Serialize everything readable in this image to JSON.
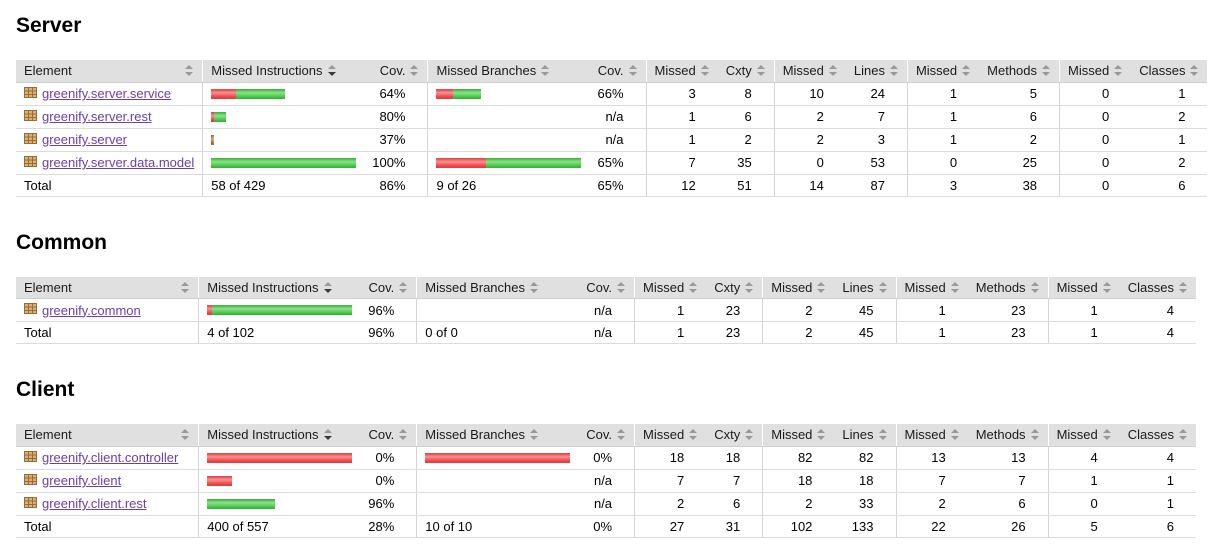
{
  "colors": {
    "header_bg": "#e0e0e0",
    "link": "#6b40a8",
    "bar_red": "#ee4343",
    "bar_green": "#44c544",
    "sort_inactive": "#999999",
    "sort_active": "#3a3a3a"
  },
  "columns": [
    {
      "label": "Element",
      "type": "element",
      "sorted": false
    },
    {
      "label": "Missed Instructions",
      "type": "bar",
      "sorted": true
    },
    {
      "label": "Cov.",
      "type": "ctr2",
      "sorted": false
    },
    {
      "label": "Missed Branches",
      "type": "bar",
      "sorted": false
    },
    {
      "label": "Cov.",
      "type": "ctr2",
      "sorted": false
    },
    {
      "label": "Missed",
      "type": "ctr1",
      "sorted": false
    },
    {
      "label": "Cxty",
      "type": "ctr2",
      "sorted": false
    },
    {
      "label": "Missed",
      "type": "ctr1",
      "sorted": false
    },
    {
      "label": "Lines",
      "type": "ctr2",
      "sorted": false
    },
    {
      "label": "Missed",
      "type": "ctr1",
      "sorted": false
    },
    {
      "label": "Methods",
      "type": "ctr2",
      "sorted": false
    },
    {
      "label": "Missed",
      "type": "ctr1",
      "sorted": false
    },
    {
      "label": "Classes",
      "type": "ctr2",
      "sorted": false
    }
  ],
  "sections": [
    {
      "title": "Server",
      "rows": [
        {
          "name": "greenify.server.service",
          "instructions": {
            "bar": {
              "red": 25,
              "green": 49
            },
            "cov": "64%"
          },
          "branches": {
            "bar": {
              "red": 17,
              "green": 28
            },
            "cov": "66%"
          },
          "missed_cxty": 3,
          "cxty": 8,
          "missed_lines": 10,
          "lines": 24,
          "missed_methods": 1,
          "methods": 5,
          "missed_classes": 0,
          "classes": 1
        },
        {
          "name": "greenify.server.rest",
          "instructions": {
            "bar": {
              "red": 3,
              "green": 12
            },
            "cov": "80%"
          },
          "branches": {
            "cov": "n/a"
          },
          "missed_cxty": 1,
          "cxty": 6,
          "missed_lines": 2,
          "lines": 7,
          "missed_methods": 1,
          "methods": 6,
          "missed_classes": 0,
          "classes": 2
        },
        {
          "name": "greenify.server",
          "instructions": {
            "bar": {
              "red": 2,
              "green": 1
            },
            "cov": "37%"
          },
          "branches": {
            "cov": "n/a"
          },
          "missed_cxty": 1,
          "cxty": 2,
          "missed_lines": 2,
          "lines": 3,
          "missed_methods": 1,
          "methods": 2,
          "missed_classes": 0,
          "classes": 1
        },
        {
          "name": "greenify.server.data.model",
          "instructions": {
            "bar": {
              "red": 0,
              "green": 145
            },
            "cov": "100%"
          },
          "branches": {
            "bar": {
              "red": 50,
              "green": 95
            },
            "cov": "65%"
          },
          "missed_cxty": 7,
          "cxty": 35,
          "missed_lines": 0,
          "lines": 53,
          "missed_methods": 0,
          "methods": 25,
          "missed_classes": 0,
          "classes": 2
        }
      ],
      "total": {
        "label": "Total",
        "instructions": {
          "text": "58 of 429",
          "cov": "86%"
        },
        "branches": {
          "text": "9 of 26",
          "cov": "65%"
        },
        "missed_cxty": 12,
        "cxty": 51,
        "missed_lines": 14,
        "lines": 87,
        "missed_methods": 3,
        "methods": 38,
        "missed_classes": 0,
        "classes": 6
      }
    },
    {
      "title": "Common",
      "rows": [
        {
          "name": "greenify.common",
          "instructions": {
            "bar": {
              "red": 5,
              "green": 140
            },
            "cov": "96%"
          },
          "branches": {
            "cov": "n/a"
          },
          "missed_cxty": 1,
          "cxty": 23,
          "missed_lines": 2,
          "lines": 45,
          "missed_methods": 1,
          "methods": 23,
          "missed_classes": 1,
          "classes": 4
        }
      ],
      "total": {
        "label": "Total",
        "instructions": {
          "text": "4 of 102",
          "cov": "96%"
        },
        "branches": {
          "text": "0 of 0",
          "cov": "n/a"
        },
        "missed_cxty": 1,
        "cxty": 23,
        "missed_lines": 2,
        "lines": 45,
        "missed_methods": 1,
        "methods": 23,
        "missed_classes": 1,
        "classes": 4
      }
    },
    {
      "title": "Client",
      "rows": [
        {
          "name": "greenify.client.controller",
          "instructions": {
            "bar": {
              "red": 145,
              "green": 0
            },
            "cov": "0%"
          },
          "branches": {
            "bar": {
              "red": 145,
              "green": 0
            },
            "cov": "0%"
          },
          "missed_cxty": 18,
          "cxty": 18,
          "missed_lines": 82,
          "lines": 82,
          "missed_methods": 13,
          "methods": 13,
          "missed_classes": 4,
          "classes": 4
        },
        {
          "name": "greenify.client",
          "instructions": {
            "bar": {
              "red": 25,
              "green": 0
            },
            "cov": "0%"
          },
          "branches": {
            "cov": "n/a"
          },
          "missed_cxty": 7,
          "cxty": 7,
          "missed_lines": 18,
          "lines": 18,
          "missed_methods": 7,
          "methods": 7,
          "missed_classes": 1,
          "classes": 1
        },
        {
          "name": "greenify.client.rest",
          "instructions": {
            "bar": {
              "red": 0,
              "green": 68
            },
            "cov": "96%"
          },
          "branches": {
            "cov": "n/a"
          },
          "missed_cxty": 2,
          "cxty": 6,
          "missed_lines": 2,
          "lines": 33,
          "missed_methods": 2,
          "methods": 6,
          "missed_classes": 0,
          "classes": 1
        }
      ],
      "total": {
        "label": "Total",
        "instructions": {
          "text": "400 of 557",
          "cov": "28%"
        },
        "branches": {
          "text": "10 of 10",
          "cov": "0%"
        },
        "missed_cxty": 27,
        "cxty": 31,
        "missed_lines": 102,
        "lines": 133,
        "missed_methods": 22,
        "methods": 26,
        "missed_classes": 5,
        "classes": 6
      }
    }
  ]
}
